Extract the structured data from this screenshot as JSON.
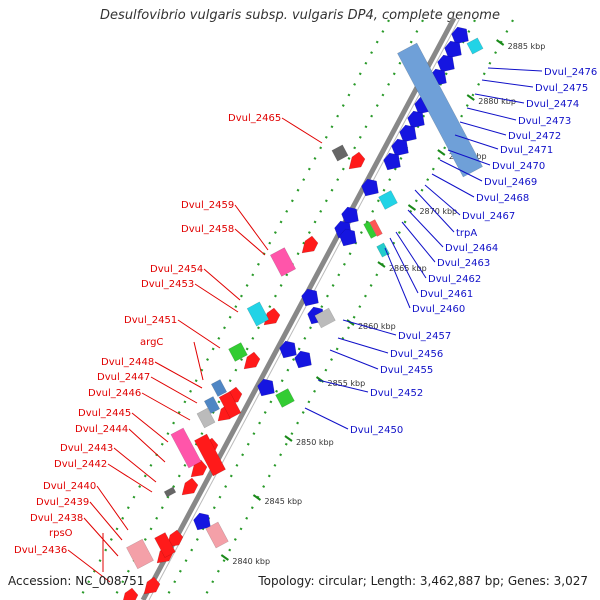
{
  "title": "Desulfovibrio vulgaris subsp. vulgaris DP4, complete genome",
  "accession": "Accession: NC_008751",
  "topology": "Topology: circular; Length: 3,462,887 bp; Genes: 3,027",
  "colors": {
    "forward_label": "#e00000",
    "reverse_label": "#1010c8",
    "forward_gene": "#ff1a1a",
    "reverse_gene": "#1515e0",
    "rna": "#6fa0d8",
    "pseudogene": "#ff55aa",
    "cyan_gene": "#22d3e6",
    "green_gene": "#33cc33",
    "grey_gene": "#bbbbbb",
    "backbone": "#888888"
  },
  "ticks": [
    "2840 kbp",
    "2845 kbp",
    "2850 kbp",
    "2855 kbp",
    "2860 kbp",
    "2865 kbp",
    "2870 kbp",
    "2875 kbp",
    "2880 kbp",
    "2885 kbp"
  ],
  "left_labels": [
    "Dvul_2465",
    "Dvul_2459",
    "Dvul_2458",
    "Dvul_2454",
    "Dvul_2453",
    "Dvul_2451",
    "argC",
    "Dvul_2448",
    "Dvul_2447",
    "Dvul_2446",
    "Dvul_2445",
    "Dvul_2444",
    "Dvul_2443",
    "Dvul_2442",
    "Dvul_2440",
    "Dvul_2439",
    "Dvul_2438",
    "rpsO",
    "Dvul_2436"
  ],
  "right_labels": [
    "Dvul_2476",
    "Dvul_2475",
    "Dvul_2474",
    "Dvul_2473",
    "Dvul_2472",
    "Dvul_2471",
    "Dvul_2470",
    "Dvul_2469",
    "Dvul_2468",
    "Dvul_2467",
    "trpA",
    "Dvul_2464",
    "Dvul_2463",
    "Dvul_2462",
    "Dvul_2461",
    "Dvul_2460",
    "Dvul_2457",
    "Dvul_2456",
    "Dvul_2455",
    "Dvul_2452",
    "Dvul_2450"
  ]
}
